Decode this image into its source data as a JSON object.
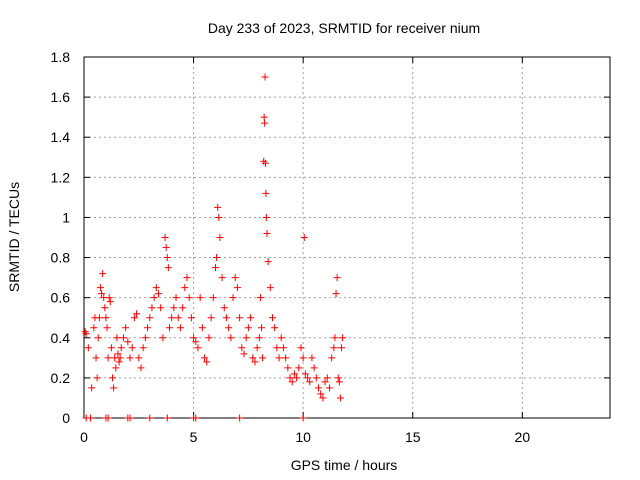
{
  "chart_data": {
    "type": "scatter",
    "title": "Day 233 of 2023, SRMTID for receiver nium",
    "xlabel": "GPS time / hours",
    "ylabel": "SRMTID / TECUs",
    "xlim": [
      0,
      24
    ],
    "ylim": [
      0,
      1.8
    ],
    "xticks": [
      0,
      5,
      10,
      15,
      20
    ],
    "yticks": [
      0,
      0.2,
      0.4,
      0.6,
      0.8,
      1,
      1.2,
      1.4,
      1.6,
      1.8
    ],
    "xtick_labels": [
      "0",
      "5",
      "10",
      "15",
      "20"
    ],
    "ytick_labels": [
      "0",
      "0.2",
      "0.4",
      "0.6",
      "0.8",
      "1",
      "1.2",
      "1.4",
      "1.6",
      "1.8"
    ],
    "grid": true,
    "marker": "+",
    "marker_color": "#ff0000",
    "series": [
      {
        "name": "SRMTID",
        "x": [
          0.05,
          0.1,
          0.2,
          0.35,
          0.45,
          0.5,
          0.55,
          0.6,
          0.65,
          0.7,
          0.75,
          0.8,
          0.85,
          0.9,
          0.95,
          1.0,
          1.05,
          1.1,
          1.15,
          1.2,
          1.25,
          1.3,
          1.35,
          1.4,
          1.45,
          1.5,
          1.55,
          1.6,
          1.65,
          1.7,
          1.8,
          1.9,
          2.0,
          2.1,
          2.2,
          2.3,
          2.4,
          2.5,
          2.6,
          2.7,
          2.8,
          2.9,
          3.0,
          3.1,
          3.2,
          3.3,
          3.4,
          3.5,
          3.6,
          3.7,
          3.75,
          3.8,
          3.85,
          3.9,
          4.0,
          4.1,
          4.2,
          4.3,
          4.4,
          4.5,
          4.6,
          4.7,
          4.8,
          4.9,
          5.0,
          5.1,
          5.2,
          5.3,
          5.4,
          5.5,
          5.6,
          5.7,
          5.8,
          5.9,
          6.0,
          6.05,
          6.1,
          6.15,
          6.2,
          6.3,
          6.4,
          6.5,
          6.6,
          6.7,
          6.8,
          6.9,
          7.0,
          7.1,
          7.2,
          7.3,
          7.4,
          7.5,
          7.6,
          7.7,
          7.8,
          7.9,
          8.0,
          8.05,
          8.1,
          8.15,
          8.2,
          8.22,
          8.24,
          8.26,
          8.28,
          8.3,
          8.32,
          8.35,
          8.4,
          8.5,
          8.6,
          8.7,
          8.8,
          8.9,
          9.0,
          9.1,
          9.2,
          9.3,
          9.4,
          9.5,
          9.6,
          9.7,
          9.8,
          9.9,
          10.0,
          10.1,
          10.2,
          10.3,
          10.4,
          10.5,
          10.6,
          10.7,
          10.8,
          10.9,
          11.0,
          11.1,
          11.2,
          11.3,
          11.4,
          11.45,
          11.5,
          11.55,
          11.6,
          11.65,
          11.7,
          11.75,
          11.8,
          0.1,
          0.3,
          1.0,
          1.1,
          2.0,
          2.1,
          3.0,
          3.8,
          5.0,
          5.1,
          7.1,
          10.0,
          10.05
        ],
        "y": [
          0.43,
          0.42,
          0.35,
          0.15,
          0.45,
          0.5,
          0.3,
          0.2,
          0.4,
          0.5,
          0.65,
          0.62,
          0.72,
          0.6,
          0.55,
          0.5,
          0.45,
          0.3,
          0.6,
          0.58,
          0.35,
          0.2,
          0.15,
          0.3,
          0.25,
          0.4,
          0.32,
          0.28,
          0.3,
          0.35,
          0.4,
          0.45,
          0.38,
          0.3,
          0.35,
          0.5,
          0.52,
          0.3,
          0.25,
          0.35,
          0.4,
          0.45,
          0.5,
          0.55,
          0.6,
          0.65,
          0.62,
          0.55,
          0.4,
          0.9,
          0.85,
          0.8,
          0.75,
          0.45,
          0.5,
          0.55,
          0.6,
          0.5,
          0.45,
          0.55,
          0.65,
          0.7,
          0.6,
          0.5,
          0.4,
          0.38,
          0.35,
          0.6,
          0.45,
          0.3,
          0.28,
          0.4,
          0.5,
          0.6,
          0.75,
          0.8,
          1.05,
          1.0,
          0.9,
          0.7,
          0.55,
          0.5,
          0.45,
          0.4,
          0.6,
          0.7,
          0.65,
          0.5,
          0.35,
          0.32,
          0.4,
          0.45,
          0.5,
          0.3,
          0.28,
          0.35,
          0.4,
          0.6,
          0.45,
          0.3,
          1.28,
          1.5,
          1.47,
          1.7,
          1.27,
          1.12,
          1.0,
          0.92,
          0.78,
          0.65,
          0.5,
          0.45,
          0.35,
          0.3,
          0.4,
          0.35,
          0.3,
          0.25,
          0.2,
          0.18,
          0.22,
          0.2,
          0.25,
          0.35,
          0.3,
          0.22,
          0.2,
          0.18,
          0.3,
          0.25,
          0.2,
          0.15,
          0.12,
          0.1,
          0.18,
          0.2,
          0.15,
          0.3,
          0.35,
          0.4,
          0.62,
          0.7,
          0.2,
          0.18,
          0.1,
          0.35,
          0.4,
          0,
          0,
          0,
          0,
          0,
          0,
          0,
          0,
          0,
          0,
          0,
          0,
          0.9
        ]
      }
    ]
  }
}
